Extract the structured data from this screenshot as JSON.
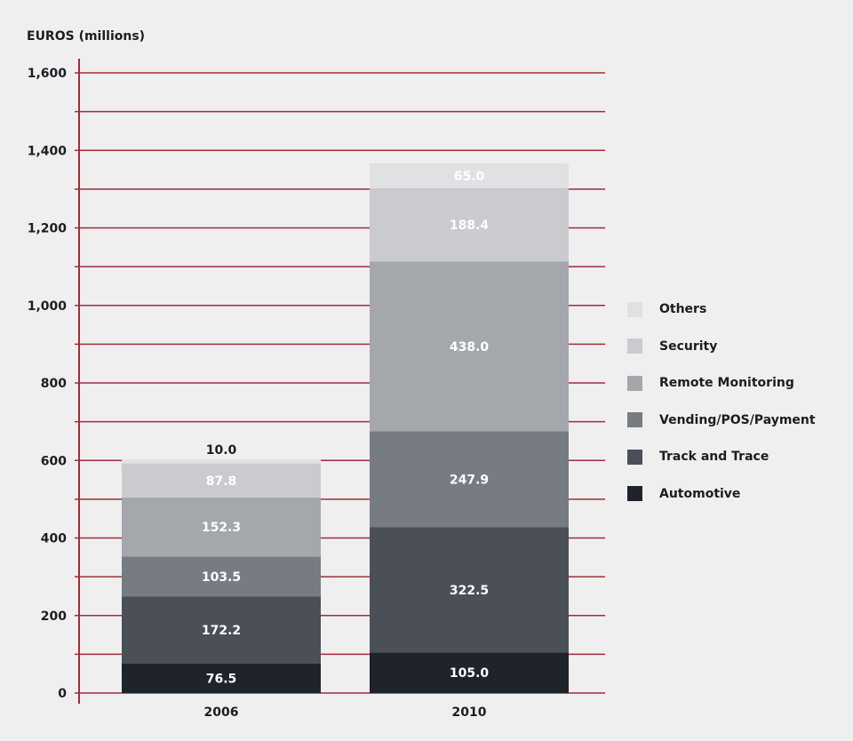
{
  "chart_data": {
    "type": "bar",
    "stacked": true,
    "ylabel": "EUROS (millions)",
    "ylim": [
      0,
      1600
    ],
    "yticks": [
      "0",
      "200",
      "400",
      "600",
      "800",
      "1,000",
      "1,200",
      "1,400",
      "1,600"
    ],
    "grid": true,
    "legend_position": "right",
    "categories": [
      "2006",
      "2010"
    ],
    "series": [
      {
        "name": "Automotive",
        "color": "#1e232c",
        "values": [
          76.5,
          105.0
        ]
      },
      {
        "name": "Track and Trace",
        "color": "#4b5058",
        "values": [
          172.2,
          322.5
        ]
      },
      {
        "name": "Vending/POS/Payment",
        "color": "#777c83",
        "values": [
          103.5,
          247.9
        ]
      },
      {
        "name": "Remote Monitoring",
        "color": "#a4a8ac",
        "values": [
          152.3,
          438.0
        ]
      },
      {
        "name": "Security",
        "color": "#c9cbce",
        "values": [
          87.8,
          188.4
        ]
      },
      {
        "name": "Others",
        "color": "#e0e1e3",
        "values": [
          10.0,
          65.0
        ]
      }
    ],
    "legend_order": [
      "Others",
      "Security",
      "Remote Monitoring",
      "Vending/POS/Payment",
      "Track and Trace",
      "Automotive"
    ],
    "label_colors": {
      "dark": "#1b1d22",
      "light": "#ffffff"
    },
    "gridline_color": "#a52a3a",
    "axis_color": "#a52a3a"
  }
}
